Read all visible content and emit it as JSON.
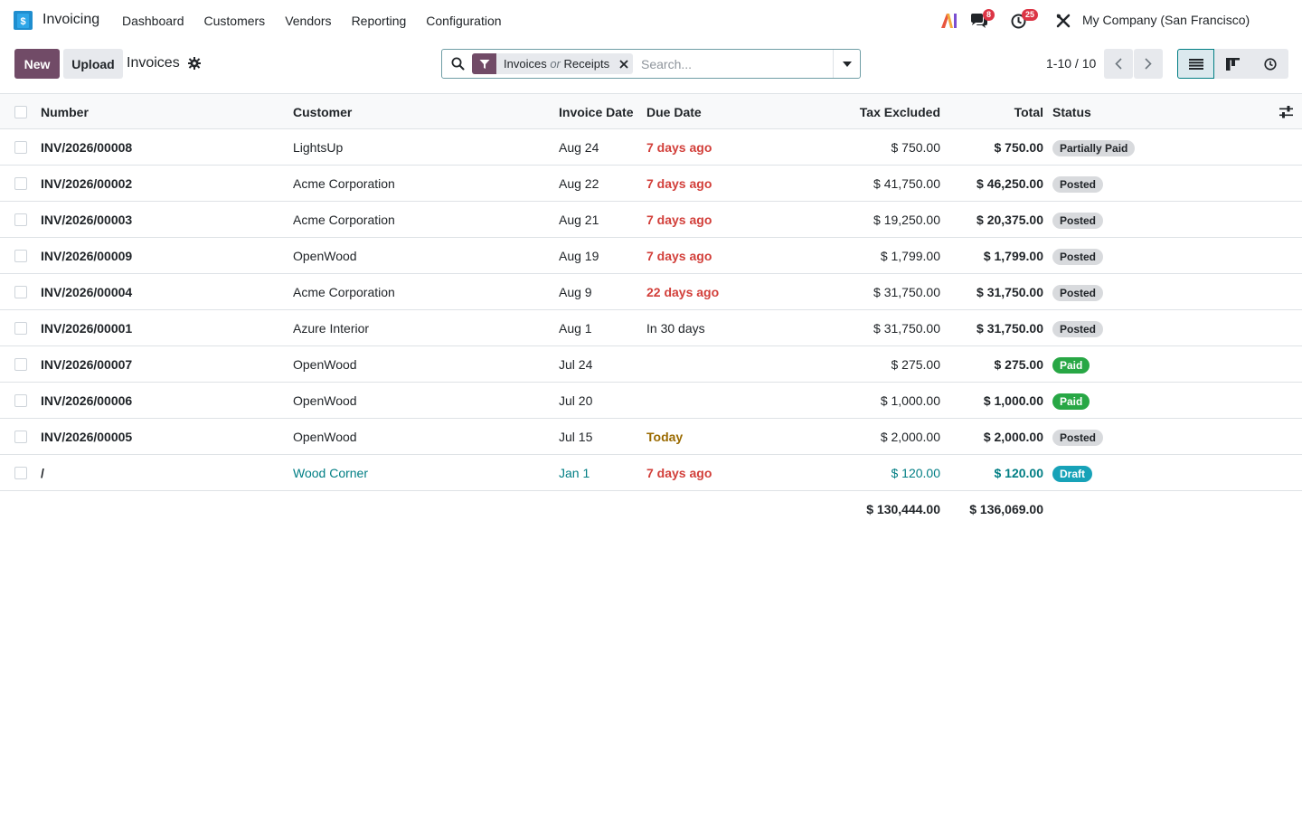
{
  "navbar": {
    "app_name": "Invoicing",
    "menu": [
      "Dashboard",
      "Customers",
      "Vendors",
      "Reporting",
      "Configuration"
    ],
    "messages_count": "8",
    "activities_count": "25",
    "company": "My Company (San Francisco)"
  },
  "control": {
    "new_label": "New",
    "upload_label": "Upload",
    "title": "Invoices",
    "facet_part1": "Invoices",
    "facet_or": "or",
    "facet_part2": "Receipts",
    "search_placeholder": "Search...",
    "pager": "1-10 / 10"
  },
  "table": {
    "headers": {
      "number": "Number",
      "customer": "Customer",
      "invoice_date": "Invoice Date",
      "due_date": "Due Date",
      "tax_excluded": "Tax Excluded",
      "total": "Total",
      "status": "Status"
    },
    "rows": [
      {
        "number": "INV/2026/00008",
        "customer": "LightsUp",
        "invoice_date": "Aug 24",
        "due": "7 days ago",
        "due_style": "red",
        "tax": "$ 750.00",
        "total": "$ 750.00",
        "status": "Partially Paid",
        "status_style": "grey",
        "row_style": ""
      },
      {
        "number": "INV/2026/00002",
        "customer": "Acme Corporation",
        "invoice_date": "Aug 22",
        "due": "7 days ago",
        "due_style": "red",
        "tax": "$ 41,750.00",
        "total": "$ 46,250.00",
        "status": "Posted",
        "status_style": "grey",
        "row_style": ""
      },
      {
        "number": "INV/2026/00003",
        "customer": "Acme Corporation",
        "invoice_date": "Aug 21",
        "due": "7 days ago",
        "due_style": "red",
        "tax": "$ 19,250.00",
        "total": "$ 20,375.00",
        "status": "Posted",
        "status_style": "grey",
        "row_style": ""
      },
      {
        "number": "INV/2026/00009",
        "customer": "OpenWood",
        "invoice_date": "Aug 19",
        "due": "7 days ago",
        "due_style": "red",
        "tax": "$ 1,799.00",
        "total": "$ 1,799.00",
        "status": "Posted",
        "status_style": "grey",
        "row_style": ""
      },
      {
        "number": "INV/2026/00004",
        "customer": "Acme Corporation",
        "invoice_date": "Aug 9",
        "due": "22 days ago",
        "due_style": "red",
        "tax": "$ 31,750.00",
        "total": "$ 31,750.00",
        "status": "Posted",
        "status_style": "grey",
        "row_style": ""
      },
      {
        "number": "INV/2026/00001",
        "customer": "Azure Interior",
        "invoice_date": "Aug 1",
        "due": "In 30 days",
        "due_style": "",
        "tax": "$ 31,750.00",
        "total": "$ 31,750.00",
        "status": "Posted",
        "status_style": "grey",
        "row_style": ""
      },
      {
        "number": "INV/2026/00007",
        "customer": "OpenWood",
        "invoice_date": "Jul 24",
        "due": "",
        "due_style": "",
        "tax": "$ 275.00",
        "total": "$ 275.00",
        "status": "Paid",
        "status_style": "green",
        "row_style": ""
      },
      {
        "number": "INV/2026/00006",
        "customer": "OpenWood",
        "invoice_date": "Jul 20",
        "due": "",
        "due_style": "",
        "tax": "$ 1,000.00",
        "total": "$ 1,000.00",
        "status": "Paid",
        "status_style": "green",
        "row_style": ""
      },
      {
        "number": "INV/2026/00005",
        "customer": "OpenWood",
        "invoice_date": "Jul 15",
        "due": "Today",
        "due_style": "warn",
        "tax": "$ 2,000.00",
        "total": "$ 2,000.00",
        "status": "Posted",
        "status_style": "grey",
        "row_style": ""
      },
      {
        "number": "/",
        "customer": "Wood Corner",
        "invoice_date": "Jan 1",
        "due": "7 days ago",
        "due_style": "red",
        "tax": "$ 120.00",
        "total": "$ 120.00",
        "status": "Draft",
        "status_style": "teal",
        "row_style": "draft"
      }
    ],
    "totals": {
      "tax": "$ 130,444.00",
      "total": "$ 136,069.00"
    }
  },
  "colors": {
    "brand": "#714B67",
    "accent": "#017e84",
    "danger": "#d23f3a"
  }
}
